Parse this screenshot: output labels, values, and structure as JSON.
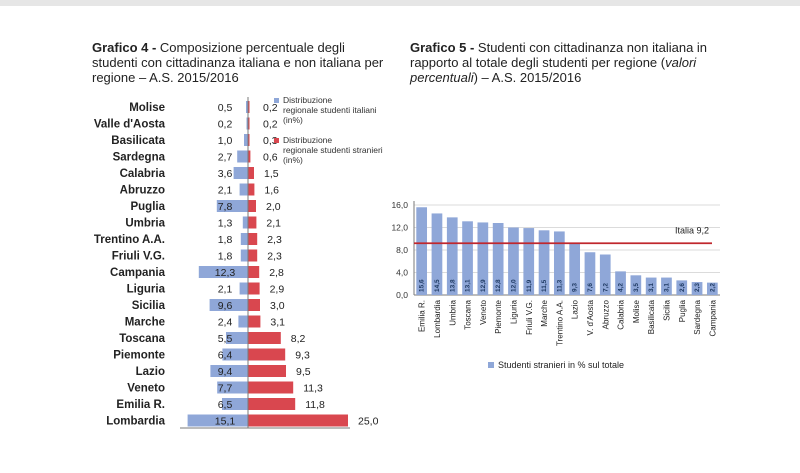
{
  "chart_data": [
    {
      "type": "bar",
      "orientation": "horizontal-diverging",
      "title_bold": "Grafico 4 - ",
      "title": "Composizione percentuale degli studenti con cittadinanza italiana e non italiana per regione – A.S. 2015/2016",
      "categories": [
        "Molise",
        "Valle d'Aosta",
        "Basilicata",
        "Sardegna",
        "Calabria",
        "Abruzzo",
        "Puglia",
        "Umbria",
        "Trentino A.A.",
        "Friuli V.G.",
        "Campania",
        "Liguria",
        "Sicilia",
        "Marche",
        "Toscana",
        "Piemonte",
        "Lazio",
        "Veneto",
        "Emilia R.",
        "Lombardia"
      ],
      "series": [
        {
          "name": "Distribuzione regionale studenti italiani (in%)",
          "color": "#8fa7d8",
          "values": [
            0.5,
            0.2,
            1.0,
            2.7,
            3.6,
            2.1,
            7.8,
            1.3,
            1.8,
            1.8,
            12.3,
            2.1,
            9.6,
            2.4,
            5.5,
            6.4,
            9.4,
            7.7,
            6.5,
            15.1
          ],
          "labels": [
            "0,5",
            "0,2",
            "1,0",
            "2,7",
            "3,6",
            "2,1",
            "7,8",
            "1,3",
            "1,8",
            "1,8",
            "12,3",
            "2,1",
            "9,6",
            "2,4",
            "5,5",
            "6,4",
            "9,4",
            "7,7",
            "6,5",
            "15,1"
          ]
        },
        {
          "name": "Distribuzione regionale studenti stranieri (in%)",
          "color": "#d9474f",
          "values": [
            0.2,
            0.2,
            0.3,
            0.6,
            1.5,
            1.6,
            2.0,
            2.1,
            2.3,
            2.3,
            2.8,
            2.9,
            3.0,
            3.1,
            8.2,
            9.3,
            9.5,
            11.3,
            11.8,
            25.0
          ],
          "labels": [
            "0,2",
            "0,2",
            "0,3",
            "0,6",
            "1,5",
            "1,6",
            "2,0",
            "2,1",
            "2,3",
            "2,3",
            "2,8",
            "2,9",
            "3,0",
            "3,1",
            "8,2",
            "9,3",
            "9,5",
            "11,3",
            "11,8",
            "25,0"
          ]
        }
      ],
      "legend_position": "right"
    },
    {
      "type": "bar",
      "title_bold": "Grafico 5 - ",
      "title_a": "Studenti con cittadinanza non italiana in rapporto al totale degli studenti per regione (",
      "title_italic": "valori percentuali",
      "title_b": ") – A.S. 2015/2016",
      "categories": [
        "Emilia R.",
        "Lombardia",
        "Umbria",
        "Toscana",
        "Veneto",
        "Piemonte",
        "Liguria",
        "Friuli V.G.",
        "Marche",
        "Trentino A.A.",
        "Lazio",
        "V. d'Aosta",
        "Abruzzo",
        "Calabria",
        "Molise",
        "Basilicata",
        "Sicilia",
        "Puglia",
        "Sardegna",
        "Campania"
      ],
      "series": [
        {
          "name": "Studenti stranieri in % sul totale",
          "color": "#8fa7d8",
          "values": [
            15.6,
            14.5,
            13.8,
            13.1,
            12.9,
            12.8,
            12.0,
            11.9,
            11.5,
            11.3,
            9.3,
            7.6,
            7.2,
            4.2,
            3.5,
            3.1,
            3.1,
            2.6,
            2.3,
            2.2
          ],
          "labels": [
            "15,6",
            "14,5",
            "13,8",
            "13,1",
            "12,9",
            "12,8",
            "12,0",
            "11,9",
            "11,5",
            "11,3",
            "9,3",
            "7,6",
            "7,2",
            "4,2",
            "3,5",
            "3,1",
            "3,1",
            "2,6",
            "2,3",
            "2,2"
          ]
        }
      ],
      "ylim": [
        0,
        16
      ],
      "yticks": [
        0,
        4,
        8,
        12,
        16
      ],
      "ytick_labels": [
        "0,0",
        "4,0",
        "8,0",
        "12,0",
        "16,0"
      ],
      "reference_line": {
        "value": 9.2,
        "label": "Italia 9,2",
        "color": "#c0272d"
      },
      "legend_position": "bottom-left"
    }
  ]
}
